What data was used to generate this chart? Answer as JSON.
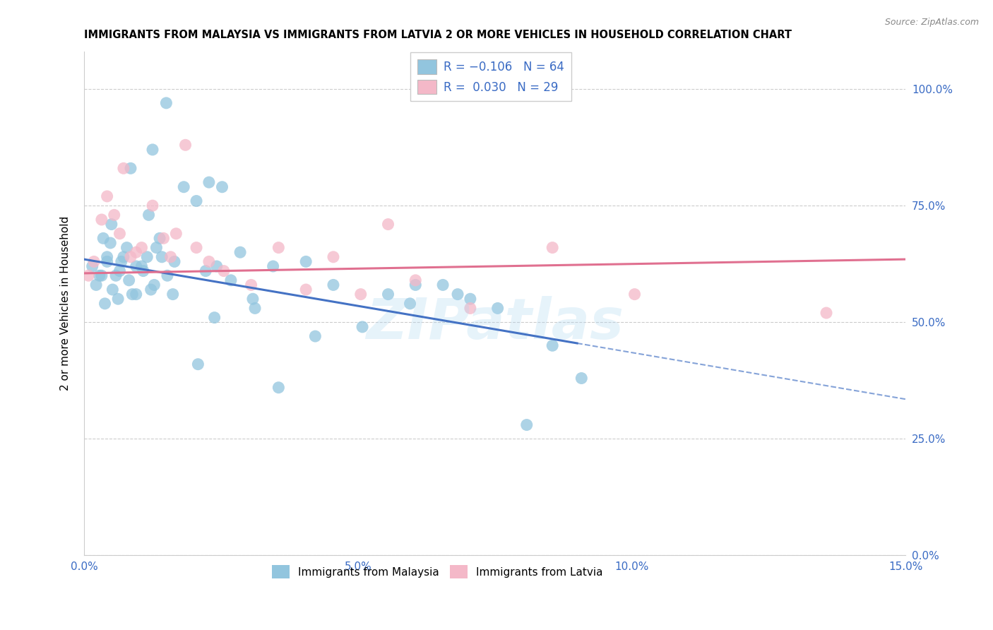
{
  "title": "IMMIGRANTS FROM MALAYSIA VS IMMIGRANTS FROM LATVIA 2 OR MORE VEHICLES IN HOUSEHOLD CORRELATION CHART",
  "source": "Source: ZipAtlas.com",
  "xlabel_ticks": [
    "0.0%",
    "5.0%",
    "10.0%",
    "15.0%"
  ],
  "xlabel_vals": [
    0.0,
    5.0,
    10.0,
    15.0
  ],
  "ylabel_ticks": [
    "0.0%",
    "25.0%",
    "50.0%",
    "75.0%",
    "100.0%"
  ],
  "ylabel_vals": [
    0.0,
    25.0,
    50.0,
    75.0,
    100.0
  ],
  "ylabel_label": "2 or more Vehicles in Household",
  "xmin": 0.0,
  "xmax": 15.0,
  "ymin": 0.0,
  "ymax": 108.0,
  "blue_color": "#92c5de",
  "pink_color": "#f4b8c8",
  "blue_line_color": "#4472c4",
  "pink_line_color": "#e07090",
  "watermark": "ZIPatlas",
  "malaysia_x": [
    0.15,
    1.5,
    0.85,
    1.25,
    0.35,
    0.42,
    0.48,
    0.5,
    0.58,
    0.65,
    0.68,
    0.78,
    0.88,
    0.95,
    1.05,
    1.15,
    1.28,
    1.38,
    1.52,
    1.65,
    1.82,
    2.05,
    2.28,
    2.52,
    2.85,
    3.12,
    3.45,
    4.05,
    4.55,
    5.08,
    5.55,
    5.95,
    6.55,
    7.05,
    7.55,
    8.55,
    0.32,
    0.42,
    0.52,
    0.62,
    0.72,
    0.82,
    0.95,
    1.08,
    1.22,
    1.42,
    1.62,
    2.08,
    2.38,
    2.68,
    1.18,
    1.32,
    2.22,
    2.42,
    0.22,
    0.38,
    0.28,
    3.08,
    3.55,
    4.22,
    6.05,
    8.08,
    9.08,
    6.82
  ],
  "malaysia_y": [
    62,
    97,
    83,
    87,
    68,
    64,
    67,
    71,
    60,
    61,
    63,
    66,
    56,
    62,
    62,
    64,
    58,
    68,
    60,
    63,
    79,
    76,
    80,
    79,
    65,
    53,
    62,
    63,
    58,
    49,
    56,
    54,
    58,
    55,
    53,
    45,
    60,
    63,
    57,
    55,
    64,
    59,
    56,
    61,
    57,
    64,
    56,
    41,
    51,
    59,
    73,
    66,
    61,
    62,
    58,
    54,
    60,
    55,
    36,
    47,
    58,
    28,
    38,
    56
  ],
  "latvia_x": [
    0.08,
    0.18,
    0.32,
    0.42,
    0.55,
    0.65,
    0.72,
    0.85,
    0.95,
    1.05,
    1.25,
    1.45,
    1.58,
    1.68,
    1.85,
    2.05,
    2.28,
    2.55,
    3.05,
    3.55,
    4.05,
    4.55,
    5.05,
    5.55,
    6.05,
    7.05,
    8.55,
    10.05,
    13.55
  ],
  "latvia_y": [
    60,
    63,
    72,
    77,
    73,
    69,
    83,
    64,
    65,
    66,
    75,
    68,
    64,
    69,
    88,
    66,
    63,
    61,
    58,
    66,
    57,
    64,
    56,
    71,
    59,
    53,
    66,
    56,
    52
  ],
  "blue_line_x0": 0.0,
  "blue_line_y0": 63.5,
  "blue_line_x1": 9.0,
  "blue_line_y1": 45.5,
  "blue_dash_x0": 9.0,
  "blue_dash_y0": 45.5,
  "blue_dash_x1": 15.0,
  "blue_dash_y1": 33.5,
  "pink_line_x0": 0.0,
  "pink_line_y0": 60.5,
  "pink_line_x1": 15.0,
  "pink_line_y1": 63.5
}
